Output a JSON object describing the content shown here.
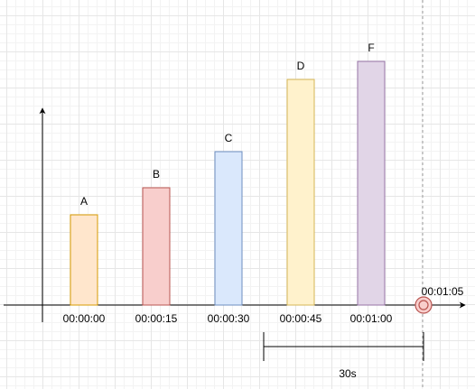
{
  "chart_data": {
    "type": "bar",
    "categories": [
      "00:00:00",
      "00:00:15",
      "00:00:30",
      "00:00:45",
      "00:01:00"
    ],
    "bars": [
      {
        "label": "A",
        "time": "00:00:00",
        "value": 1.0,
        "fill": "#ffe6cc",
        "stroke": "#d79b00"
      },
      {
        "label": "B",
        "time": "00:00:15",
        "value": 1.3,
        "fill": "#f8cecc",
        "stroke": "#b85450"
      },
      {
        "label": "C",
        "time": "00:00:30",
        "value": 1.7,
        "fill": "#dae8fc",
        "stroke": "#6c8ebf"
      },
      {
        "label": "D",
        "time": "00:00:45",
        "value": 2.5,
        "fill": "#fff2cc",
        "stroke": "#d6b656"
      },
      {
        "label": "F",
        "time": "00:01:00",
        "value": 2.7,
        "fill": "#e1d5e7",
        "stroke": "#9673a6"
      }
    ],
    "marker": {
      "time": "00:01:05",
      "fill": "#f8cecc",
      "stroke": "#b85450"
    },
    "window": {
      "label": "30s",
      "from": "00:00:35",
      "to": "00:01:05"
    },
    "grid": true
  }
}
